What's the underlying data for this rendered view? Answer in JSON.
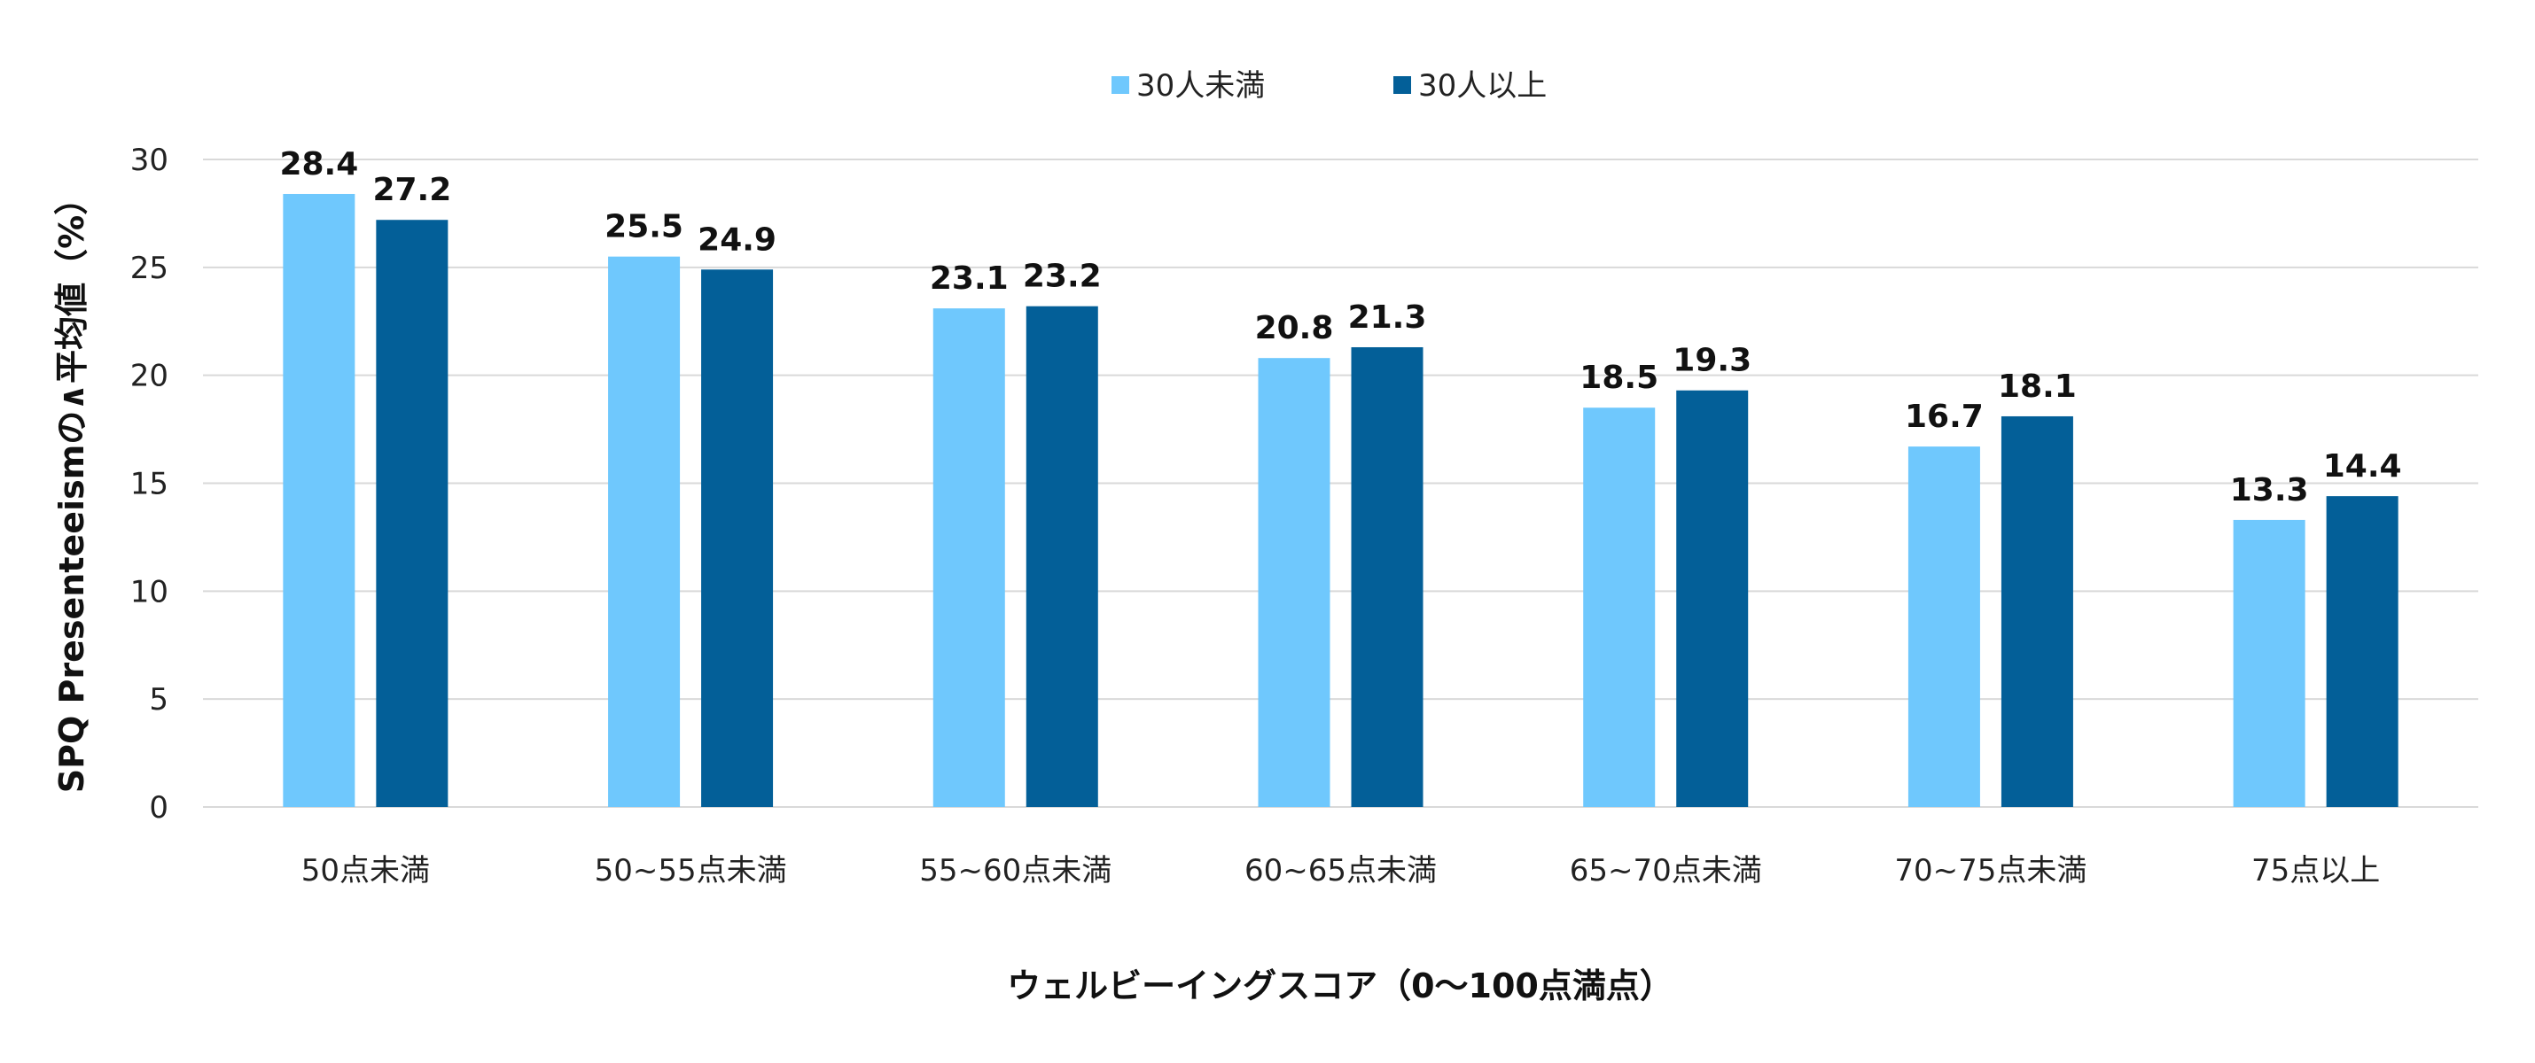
{
  "chart_data": {
    "type": "bar",
    "title": "",
    "xlabel": "ウェルビーイングスコア（0〜100点満点）",
    "ylabel": "SPQ Presenteeismの∧平均値（%）",
    "ylim": [
      0,
      30
    ],
    "yticks": [
      0,
      5,
      10,
      15,
      20,
      25,
      30
    ],
    "grid": true,
    "legend_position": "top",
    "categories": [
      "50点未満",
      "50~55点未満",
      "55~60点未満",
      "60~65点未満",
      "65~70点未満",
      "70~75点未満",
      "75点以上"
    ],
    "series": [
      {
        "name": "30人未満",
        "color": "#6FC8FD",
        "values": [
          28.4,
          25.5,
          23.1,
          20.8,
          18.5,
          16.7,
          13.3
        ]
      },
      {
        "name": "30人以上",
        "color": "#035F98",
        "values": [
          27.2,
          24.9,
          23.2,
          21.3,
          19.3,
          18.1,
          14.4
        ]
      }
    ]
  }
}
